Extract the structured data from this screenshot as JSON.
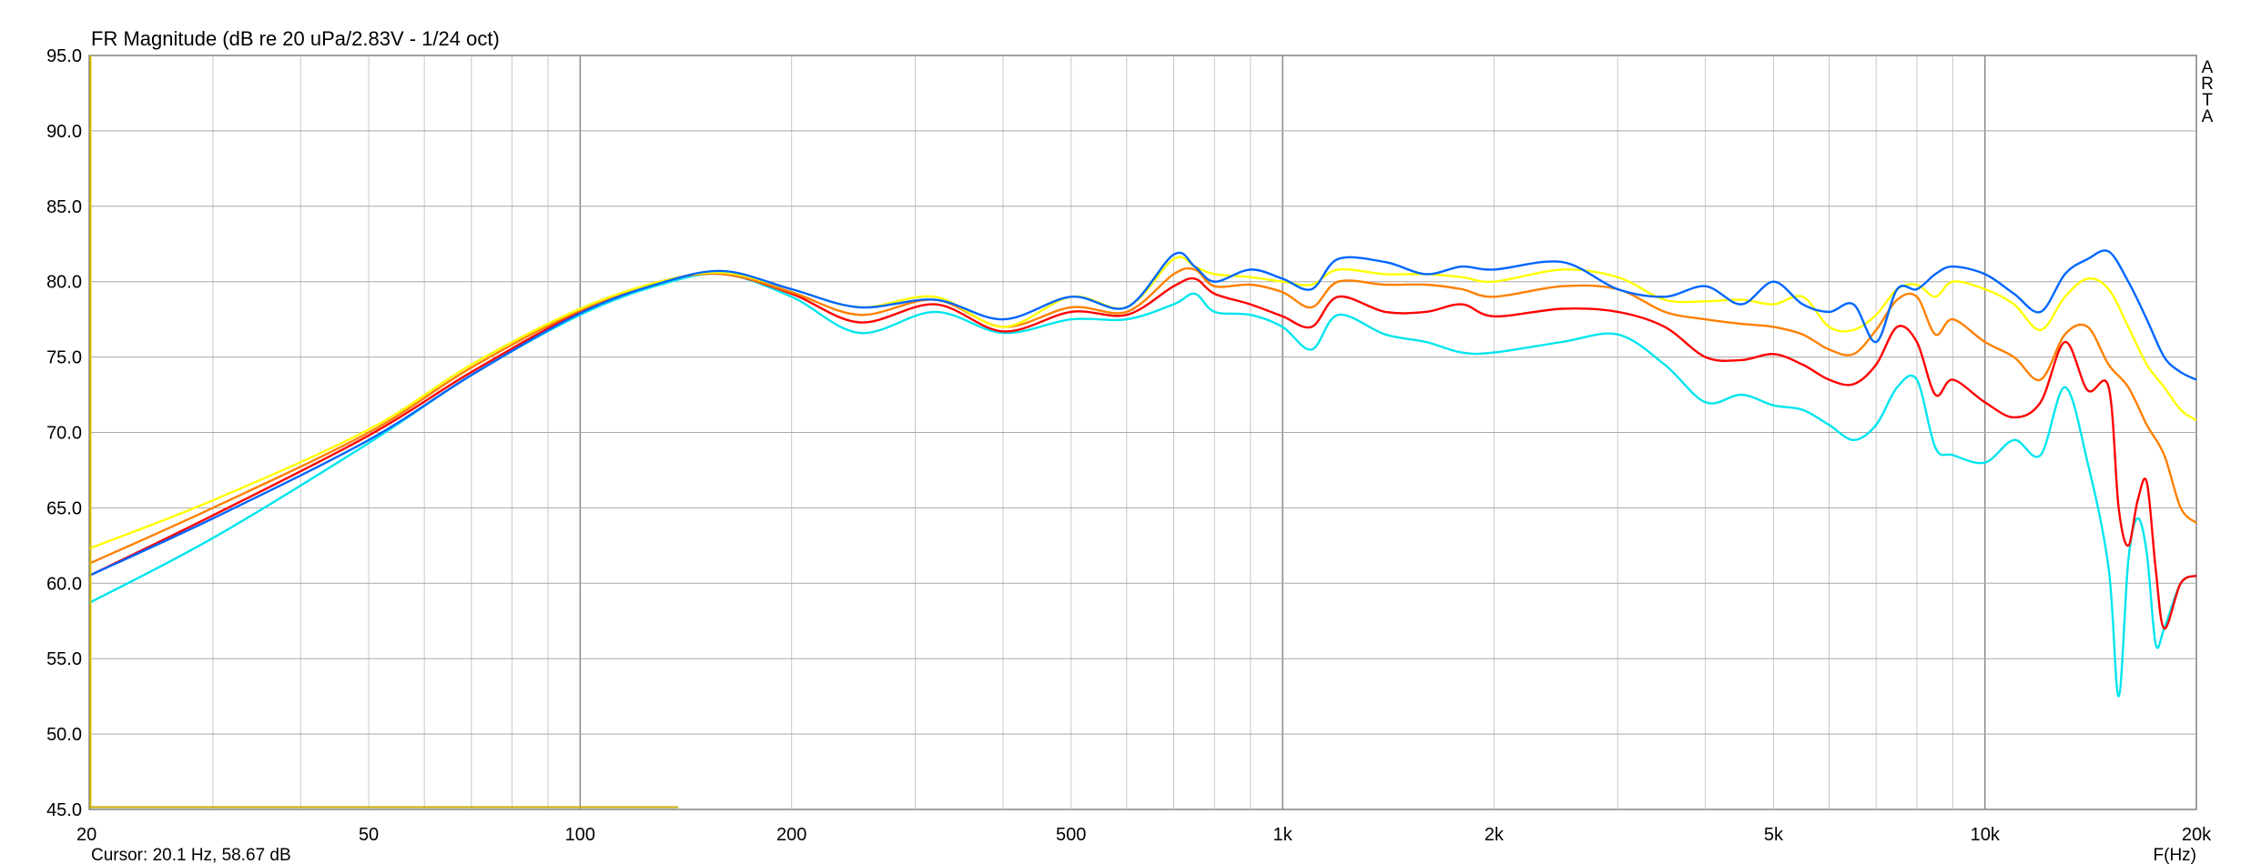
{
  "chart_data": {
    "type": "line",
    "title": "FR Magnitude (dB re 20 uPa/2.83V - 1/24 oct)",
    "xlabel": "F(Hz)",
    "ylabel": "",
    "x_scale": "log",
    "xlim": [
      20,
      20000
    ],
    "ylim": [
      45,
      95
    ],
    "grid": true,
    "x_tick_values": [
      20,
      50,
      100,
      200,
      500,
      1000,
      2000,
      5000,
      10000,
      20000
    ],
    "x_tick_labels": [
      "20",
      "50",
      "100",
      "200",
      "500",
      "1k",
      "2k",
      "5k",
      "10k",
      "20k"
    ],
    "y_tick_values": [
      45,
      50,
      55,
      60,
      65,
      70,
      75,
      80,
      85,
      90,
      95
    ],
    "y_tick_labels": [
      "45.0",
      "50.0",
      "55.0",
      "60.0",
      "65.0",
      "70.0",
      "75.0",
      "80.0",
      "85.0",
      "90.0",
      "95.0"
    ],
    "brand": "ARTA",
    "cursor_text": "Cursor: 20.1 Hz, 58.67 dB",
    "series": [
      {
        "color": "#00e5ee",
        "x": [
          20,
          30,
          50,
          70,
          100,
          130,
          160,
          200,
          250,
          320,
          400,
          500,
          600,
          700,
          750,
          800,
          900,
          1000,
          1100,
          1200,
          1400,
          1600,
          1800,
          2000,
          2500,
          3000,
          3500,
          4000,
          4500,
          5000,
          5500,
          6000,
          6500,
          7000,
          7500,
          8000,
          8500,
          9000,
          10000,
          11000,
          12000,
          13000,
          14000,
          15000,
          15500,
          16000,
          16500,
          17000,
          17500,
          18000,
          19000,
          20000
        ],
        "y": [
          58.7,
          63.0,
          69.3,
          73.8,
          77.8,
          79.8,
          80.5,
          79.0,
          76.6,
          78.0,
          76.6,
          77.5,
          77.5,
          78.5,
          79.2,
          78.0,
          77.8,
          77.0,
          75.5,
          77.8,
          76.5,
          76.0,
          75.3,
          75.3,
          76.0,
          76.5,
          74.5,
          72.0,
          72.5,
          71.8,
          71.5,
          70.5,
          69.5,
          70.5,
          73.0,
          73.5,
          69.0,
          68.5,
          68.0,
          69.5,
          68.5,
          73.0,
          68.0,
          61.0,
          52.5,
          61.5,
          64.3,
          62.0,
          56.0,
          57.0,
          60.0,
          60.5
        ]
      },
      {
        "color": "#ff0000",
        "x": [
          20,
          30,
          50,
          70,
          100,
          130,
          160,
          200,
          250,
          320,
          400,
          500,
          600,
          700,
          750,
          800,
          900,
          1000,
          1100,
          1200,
          1400,
          1600,
          1800,
          2000,
          2500,
          3000,
          3500,
          4000,
          4500,
          5000,
          5500,
          6000,
          6500,
          7000,
          7500,
          8000,
          8500,
          9000,
          10000,
          11000,
          12000,
          13000,
          14000,
          15000,
          15500,
          16000,
          16500,
          17000,
          17500,
          18000,
          19000,
          20000
        ],
        "y": [
          60.5,
          64.5,
          69.8,
          74.0,
          78.0,
          80.0,
          80.5,
          79.2,
          77.3,
          78.5,
          76.7,
          78.0,
          77.8,
          79.7,
          80.2,
          79.2,
          78.5,
          77.7,
          77.0,
          79.0,
          78.0,
          78.0,
          78.5,
          77.7,
          78.2,
          78.0,
          77.0,
          75.0,
          74.8,
          75.2,
          74.5,
          73.5,
          73.2,
          74.5,
          77.0,
          76.0,
          72.5,
          73.5,
          72.0,
          71.0,
          72.0,
          76.0,
          72.8,
          73.0,
          65.0,
          62.5,
          65.5,
          66.7,
          61.0,
          57.0,
          60.0,
          60.5
        ]
      },
      {
        "color": "#ff8000",
        "x": [
          20,
          30,
          50,
          70,
          100,
          130,
          160,
          200,
          250,
          320,
          400,
          500,
          600,
          700,
          750,
          800,
          900,
          1000,
          1100,
          1200,
          1400,
          1600,
          1800,
          2000,
          2500,
          3000,
          3500,
          4000,
          4500,
          5000,
          5500,
          6000,
          6500,
          7000,
          7500,
          8000,
          8500,
          9000,
          10000,
          11000,
          12000,
          13000,
          14000,
          15000,
          16000,
          17000,
          18000,
          19000,
          20000
        ],
        "y": [
          61.3,
          65.0,
          70.0,
          74.3,
          78.1,
          80.0,
          80.5,
          79.3,
          77.8,
          78.8,
          77.0,
          78.3,
          78.0,
          80.5,
          80.8,
          79.7,
          79.8,
          79.3,
          78.3,
          80.0,
          79.8,
          79.8,
          79.5,
          79.0,
          79.7,
          79.5,
          78.0,
          77.5,
          77.2,
          77.0,
          76.5,
          75.5,
          75.2,
          76.8,
          78.8,
          79.0,
          76.5,
          77.5,
          76.0,
          75.0,
          73.5,
          76.5,
          77.0,
          74.5,
          73.0,
          70.5,
          68.5,
          65.0,
          64.0
        ]
      },
      {
        "color": "#ffff00",
        "x": [
          20,
          30,
          50,
          70,
          100,
          130,
          160,
          200,
          250,
          320,
          400,
          500,
          600,
          700,
          750,
          800,
          900,
          1000,
          1100,
          1200,
          1400,
          1600,
          1800,
          2000,
          2500,
          3000,
          3500,
          4000,
          4500,
          5000,
          5500,
          6000,
          6500,
          7000,
          7500,
          8000,
          8500,
          9000,
          10000,
          11000,
          12000,
          13000,
          14000,
          15000,
          16000,
          17000,
          18000,
          19000,
          20000
        ],
        "y": [
          62.3,
          65.5,
          70.2,
          74.5,
          78.2,
          80.0,
          80.6,
          79.5,
          78.3,
          79.0,
          77.0,
          79.0,
          78.3,
          81.5,
          81.0,
          80.5,
          80.3,
          80.0,
          79.8,
          80.8,
          80.5,
          80.5,
          80.3,
          80.0,
          80.8,
          80.3,
          78.8,
          78.7,
          78.8,
          78.5,
          79.0,
          77.0,
          76.8,
          77.8,
          79.5,
          79.8,
          79.0,
          80.0,
          79.5,
          78.5,
          76.8,
          79.0,
          80.2,
          79.5,
          77.0,
          74.5,
          73.0,
          71.5,
          70.8
        ]
      },
      {
        "color": "#0066ff",
        "x": [
          20,
          30,
          50,
          70,
          100,
          130,
          160,
          200,
          250,
          320,
          400,
          500,
          600,
          700,
          750,
          800,
          900,
          1000,
          1100,
          1200,
          1400,
          1600,
          1800,
          2000,
          2500,
          3000,
          3500,
          4000,
          4500,
          5000,
          5500,
          6000,
          6500,
          7000,
          7500,
          8000,
          8500,
          9000,
          10000,
          11000,
          12000,
          13000,
          14000,
          15000,
          16000,
          17000,
          18000,
          19000,
          20000
        ],
        "y": [
          60.5,
          64.3,
          69.5,
          73.8,
          77.9,
          79.9,
          80.7,
          79.5,
          78.3,
          78.8,
          77.5,
          79.0,
          78.3,
          81.8,
          81.0,
          80.0,
          80.8,
          80.2,
          79.5,
          81.5,
          81.3,
          80.5,
          81.0,
          80.8,
          81.3,
          79.5,
          79.0,
          79.7,
          78.5,
          80.0,
          78.5,
          78.0,
          78.5,
          76.0,
          79.5,
          79.5,
          80.5,
          81.0,
          80.5,
          79.2,
          78.0,
          80.5,
          81.5,
          82.0,
          80.0,
          77.5,
          75.0,
          74.0,
          73.5
        ]
      }
    ]
  }
}
